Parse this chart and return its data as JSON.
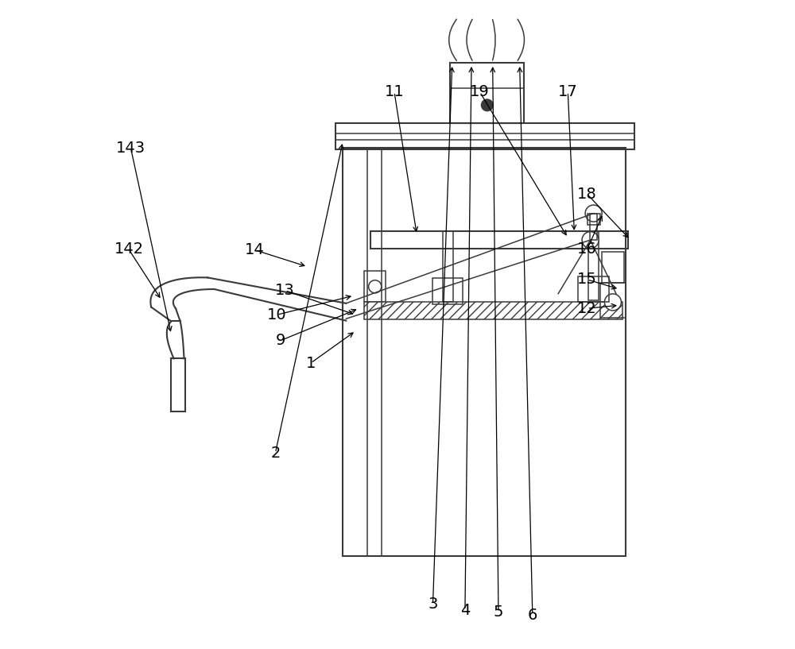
{
  "bg_color": "#ffffff",
  "lc": "#3a3a3a",
  "lw_main": 1.5,
  "lw_thin": 1.1,
  "figsize": [
    10.0,
    8.17
  ],
  "label_data": {
    "1": {
      "lpos": [
        0.365,
        0.44
      ],
      "aend": [
        0.435,
        0.49
      ]
    },
    "2": {
      "lpos": [
        0.31,
        0.3
      ],
      "aend": [
        0.415,
        0.785
      ]
    },
    "3": {
      "lpos": [
        0.555,
        0.065
      ],
      "aend": [
        0.585,
        0.905
      ]
    },
    "4": {
      "lpos": [
        0.605,
        0.055
      ],
      "aend": [
        0.615,
        0.905
      ]
    },
    "5": {
      "lpos": [
        0.657,
        0.052
      ],
      "aend": [
        0.648,
        0.905
      ]
    },
    "6": {
      "lpos": [
        0.71,
        0.048
      ],
      "aend": [
        0.69,
        0.905
      ]
    },
    "9": {
      "lpos": [
        0.318,
        0.475
      ],
      "aend": [
        0.44,
        0.525
      ]
    },
    "10": {
      "lpos": [
        0.312,
        0.515
      ],
      "aend": [
        0.432,
        0.545
      ]
    },
    "11": {
      "lpos": [
        0.495,
        0.862
      ],
      "aend": [
        0.53,
        0.64
      ]
    },
    "12": {
      "lpos": [
        0.795,
        0.525
      ],
      "aend": [
        0.845,
        0.53
      ]
    },
    "13": {
      "lpos": [
        0.325,
        0.553
      ],
      "aend": [
        0.435,
        0.515
      ]
    },
    "14": {
      "lpos": [
        0.278,
        0.616
      ],
      "aend": [
        0.36,
        0.59
      ]
    },
    "15": {
      "lpos": [
        0.795,
        0.57
      ],
      "aend": [
        0.845,
        0.555
      ]
    },
    "16": {
      "lpos": [
        0.795,
        0.617
      ],
      "aend": [
        0.82,
        0.673
      ]
    },
    "17": {
      "lpos": [
        0.765,
        0.862
      ],
      "aend": [
        0.775,
        0.643
      ]
    },
    "18": {
      "lpos": [
        0.795,
        0.703
      ],
      "aend": [
        0.862,
        0.632
      ]
    },
    "19": {
      "lpos": [
        0.628,
        0.862
      ],
      "aend": [
        0.765,
        0.635
      ]
    },
    "142": {
      "lpos": [
        0.082,
        0.617
      ],
      "aend": [
        0.133,
        0.538
      ]
    },
    "143": {
      "lpos": [
        0.085,
        0.775
      ],
      "aend": [
        0.148,
        0.485
      ]
    }
  }
}
